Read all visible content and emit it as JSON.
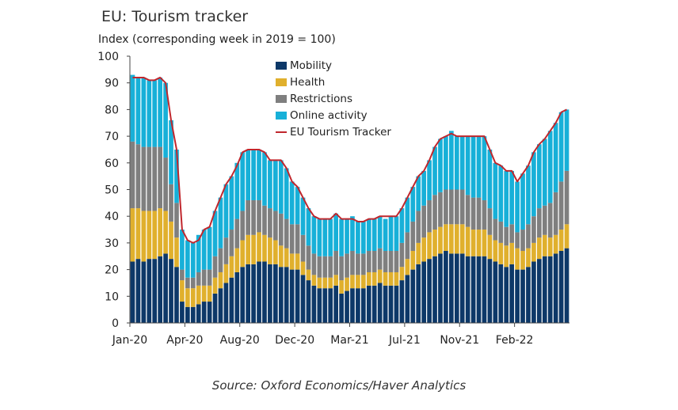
{
  "chart_data": {
    "type": "bar",
    "title": "EU: Tourism tracker",
    "ylabel": "Index (corresponding week in 2019 = 100)",
    "ylim": [
      0,
      100
    ],
    "yticks": [
      0,
      10,
      20,
      30,
      40,
      50,
      60,
      70,
      80,
      90,
      100
    ],
    "x_tick_labels": [
      "Jan-20",
      "Apr-20",
      "Aug-20",
      "Dec-20",
      "Mar-21",
      "Jul-21",
      "Nov-21",
      "Feb-22"
    ],
    "x_tick_positions": [
      0,
      10,
      20,
      30,
      40,
      50,
      60,
      70
    ],
    "stacked": true,
    "x": [
      0,
      1,
      2,
      3,
      4,
      5,
      6,
      7,
      8,
      9,
      10,
      11,
      12,
      13,
      14,
      15,
      16,
      17,
      18,
      19,
      20,
      21,
      22,
      23,
      24,
      25,
      26,
      27,
      28,
      29,
      30,
      31,
      32,
      33,
      34,
      35,
      36,
      37,
      38,
      39,
      40,
      41,
      42,
      43,
      44,
      45,
      46,
      47,
      48,
      49,
      50,
      51,
      52,
      53,
      54,
      55,
      56,
      57,
      58,
      59,
      60,
      61,
      62,
      63,
      64,
      65,
      66,
      67,
      68,
      69,
      70,
      71,
      72,
      73,
      74,
      75,
      76,
      77,
      78,
      79
    ],
    "series": [
      {
        "name": "Mobility",
        "color": "#0d3868",
        "values": [
          23,
          24,
          23,
          24,
          24,
          25,
          26,
          24,
          21,
          8,
          6,
          6,
          7,
          8,
          8,
          11,
          13,
          15,
          17,
          19,
          21,
          22,
          22,
          23,
          23,
          22,
          22,
          21,
          21,
          20,
          20,
          18,
          16,
          14,
          13,
          13,
          13,
          14,
          11,
          12,
          13,
          13,
          13,
          14,
          14,
          15,
          14,
          14,
          14,
          16,
          18,
          20,
          22,
          23,
          24,
          25,
          26,
          27,
          26,
          26,
          26,
          25,
          25,
          25,
          25,
          24,
          23,
          22,
          21,
          22,
          20,
          20,
          21,
          23,
          24,
          25,
          25,
          26,
          27,
          28
        ]
      },
      {
        "name": "Health",
        "color": "#e0b02d",
        "values": [
          20,
          19,
          19,
          18,
          18,
          18,
          16,
          14,
          11,
          8,
          7,
          7,
          7,
          6,
          6,
          6,
          6,
          7,
          8,
          9,
          10,
          11,
          11,
          11,
          10,
          10,
          9,
          8,
          7,
          6,
          6,
          5,
          4,
          4,
          4,
          4,
          4,
          4,
          5,
          5,
          5,
          5,
          5,
          5,
          5,
          5,
          5,
          5,
          5,
          5,
          6,
          7,
          8,
          9,
          10,
          10,
          10,
          10,
          11,
          11,
          11,
          11,
          10,
          10,
          10,
          9,
          8,
          8,
          8,
          8,
          8,
          7,
          7,
          7,
          8,
          8,
          7,
          7,
          8,
          9
        ]
      },
      {
        "name": "Restrictions",
        "color": "#7f7f7f",
        "values": [
          25,
          24,
          24,
          24,
          24,
          23,
          20,
          14,
          13,
          4,
          4,
          4,
          5,
          6,
          6,
          8,
          9,
          10,
          10,
          11,
          11,
          13,
          13,
          12,
          11,
          11,
          11,
          12,
          11,
          11,
          11,
          10,
          9,
          8,
          8,
          8,
          8,
          9,
          9,
          9,
          9,
          8,
          8,
          8,
          8,
          8,
          8,
          8,
          8,
          9,
          10,
          11,
          12,
          12,
          12,
          13,
          13,
          13,
          13,
          13,
          13,
          12,
          12,
          12,
          11,
          10,
          8,
          8,
          7,
          7,
          6,
          8,
          9,
          10,
          11,
          11,
          13,
          16,
          18,
          20
        ]
      },
      {
        "name": "Online activity",
        "color": "#17b0d8",
        "values": [
          25,
          25,
          26,
          25,
          25,
          26,
          28,
          24,
          20,
          15,
          14,
          13,
          14,
          15,
          16,
          17,
          19,
          20,
          20,
          21,
          22,
          19,
          19,
          19,
          20,
          18,
          19,
          20,
          19,
          16,
          14,
          14,
          14,
          14,
          14,
          14,
          14,
          14,
          14,
          13,
          13,
          12,
          12,
          12,
          12,
          12,
          12,
          13,
          13,
          13,
          13,
          13,
          13,
          13,
          15,
          18,
          20,
          20,
          22,
          20,
          20,
          22,
          23,
          23,
          24,
          22,
          21,
          21,
          21,
          20,
          19,
          21,
          22,
          24,
          24,
          25,
          27,
          26,
          26,
          23
        ]
      }
    ],
    "line": {
      "name": "EU Tourism Tracker",
      "color": "#c0272d",
      "values": [
        92,
        92,
        92,
        91,
        91,
        92,
        90,
        76,
        65,
        35,
        31,
        30,
        31,
        35,
        36,
        42,
        47,
        52,
        55,
        59,
        64,
        65,
        65,
        65,
        64,
        61,
        61,
        61,
        58,
        53,
        51,
        47,
        43,
        40,
        39,
        39,
        39,
        41,
        39,
        39,
        39,
        38,
        38,
        39,
        39,
        40,
        40,
        40,
        40,
        43,
        47,
        51,
        55,
        57,
        61,
        66,
        69,
        70,
        71,
        70,
        70,
        70,
        70,
        70,
        70,
        65,
        60,
        59,
        57,
        57,
        53,
        56,
        59,
        64,
        67,
        69,
        72,
        75,
        79,
        80
      ]
    },
    "legend_position": "top-center",
    "source": "Source: Oxford Economics/Haver Analytics"
  }
}
